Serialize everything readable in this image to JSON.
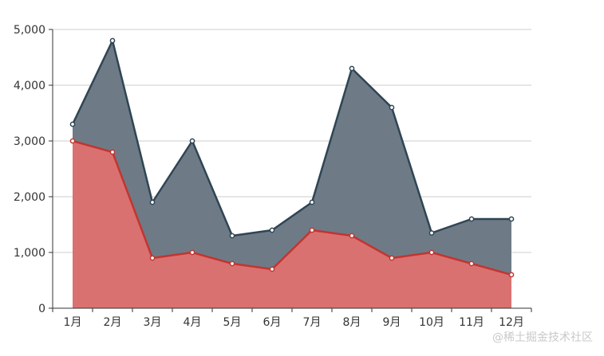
{
  "chart_data": {
    "type": "area",
    "categories": [
      "1月",
      "2月",
      "3月",
      "4月",
      "5月",
      "6月",
      "7月",
      "8月",
      "9月",
      "10月",
      "11月",
      "12月"
    ],
    "series": [
      {
        "values": [
          3300,
          4800,
          1900,
          3000,
          1300,
          1400,
          1900,
          4300,
          3600,
          1350,
          1600,
          1600
        ],
        "line_color": "#2f4554",
        "fill_color": "#6e7b86"
      },
      {
        "values": [
          3000,
          2800,
          900,
          1000,
          800,
          700,
          1400,
          1300,
          900,
          1000,
          800,
          600
        ],
        "line_color": "#c23531",
        "fill_color": "#d97170"
      }
    ],
    "ylim": [
      0,
      5000
    ],
    "yticks": [
      "0",
      "1,000",
      "2,000",
      "3,000",
      "4,000",
      "5,000"
    ],
    "grid": true
  },
  "watermark": "@稀土掘金技术社区"
}
